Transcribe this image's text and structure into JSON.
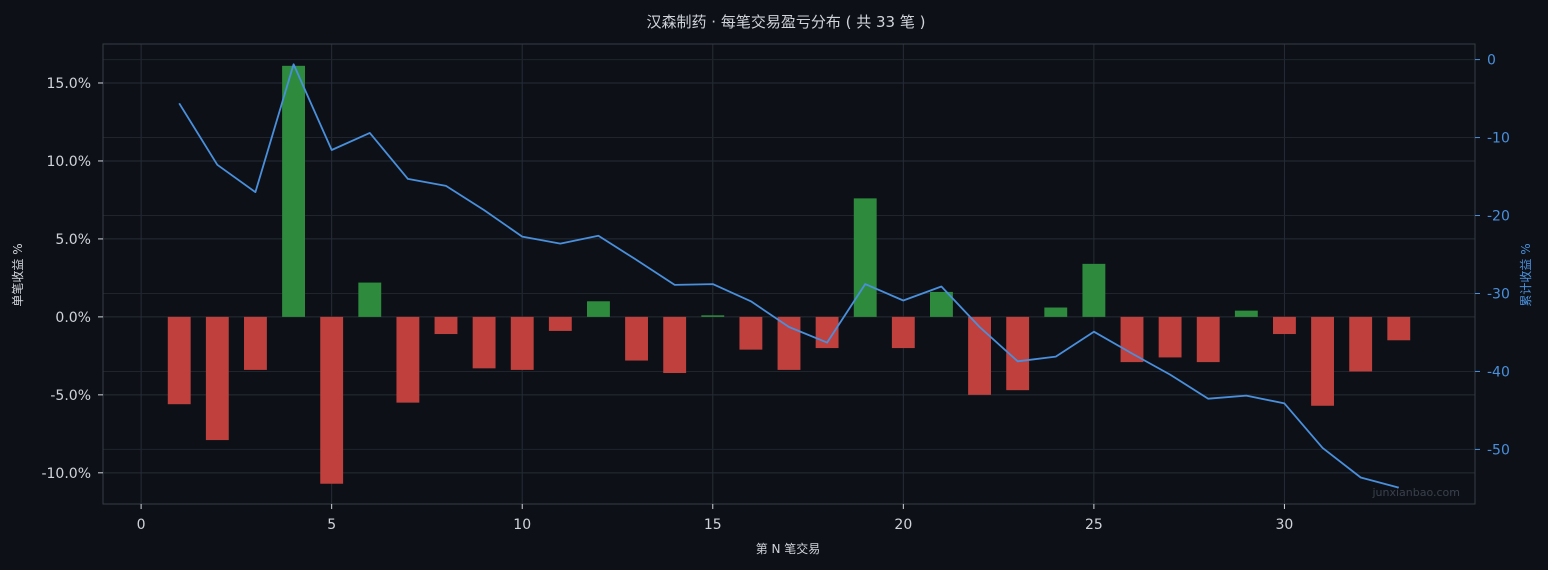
{
  "chart_data": {
    "type": "bar+line",
    "title": "汉森制药 · 每笔交易盈亏分布 ( 共 33 笔 )",
    "xlabel": "第 N 笔交易",
    "ylabel_left": "单笔收益 %",
    "ylabel_right": "累计收益 %",
    "watermark": "junxianbao.com",
    "xlim": [
      -1,
      35
    ],
    "ylim_left": [
      -12.0,
      17.5
    ],
    "ylim_right": [
      -57.0,
      2.0
    ],
    "x_ticks": [
      0,
      5,
      10,
      15,
      20,
      25,
      30
    ],
    "y_ticks_left": [
      15,
      10,
      5,
      0,
      -5,
      -10
    ],
    "y_ticks_right": [
      0,
      -10,
      -20,
      -30,
      -40,
      -50
    ],
    "grid": true,
    "x": [
      1,
      2,
      3,
      4,
      5,
      6,
      7,
      8,
      9,
      10,
      11,
      12,
      13,
      14,
      15,
      16,
      17,
      18,
      19,
      20,
      21,
      22,
      23,
      24,
      25,
      26,
      27,
      28,
      29,
      30,
      31,
      32,
      33
    ],
    "series": [
      {
        "kind": "bar",
        "axis": "left",
        "values": [
          -5.6,
          -7.9,
          -3.4,
          16.1,
          -10.7,
          2.2,
          -5.5,
          -1.1,
          -3.3,
          -3.4,
          -0.9,
          1.0,
          -2.8,
          -3.6,
          0.1,
          -2.1,
          -3.4,
          -2.0,
          7.6,
          -2.0,
          1.6,
          -5.0,
          -4.7,
          0.6,
          3.4,
          -2.9,
          -2.6,
          -2.9,
          0.4,
          -1.1,
          -5.7,
          -3.5,
          -1.5
        ]
      },
      {
        "kind": "line",
        "axis": "right",
        "values": [
          -5.6,
          -13.5,
          -17.0,
          -0.6,
          -11.6,
          -9.4,
          -15.3,
          -16.2,
          -19.3,
          -22.7,
          -23.6,
          -22.6,
          -25.7,
          -28.9,
          -28.8,
          -31.0,
          -34.3,
          -36.3,
          -28.8,
          -30.9,
          -29.1,
          -34.3,
          -38.7,
          -38.1,
          -34.9,
          -37.7,
          -40.4,
          -43.5,
          -43.1,
          -44.1,
          -49.8,
          -53.6,
          -54.9
        ]
      }
    ],
    "colors": {
      "positive": "#2e8b3e",
      "negative": "#c0403d",
      "line": "#4a8fdc",
      "right_axis": "#4a8fdc",
      "text": "#d0d4da",
      "grid": "#262c36",
      "background": "#0d1117"
    }
  }
}
